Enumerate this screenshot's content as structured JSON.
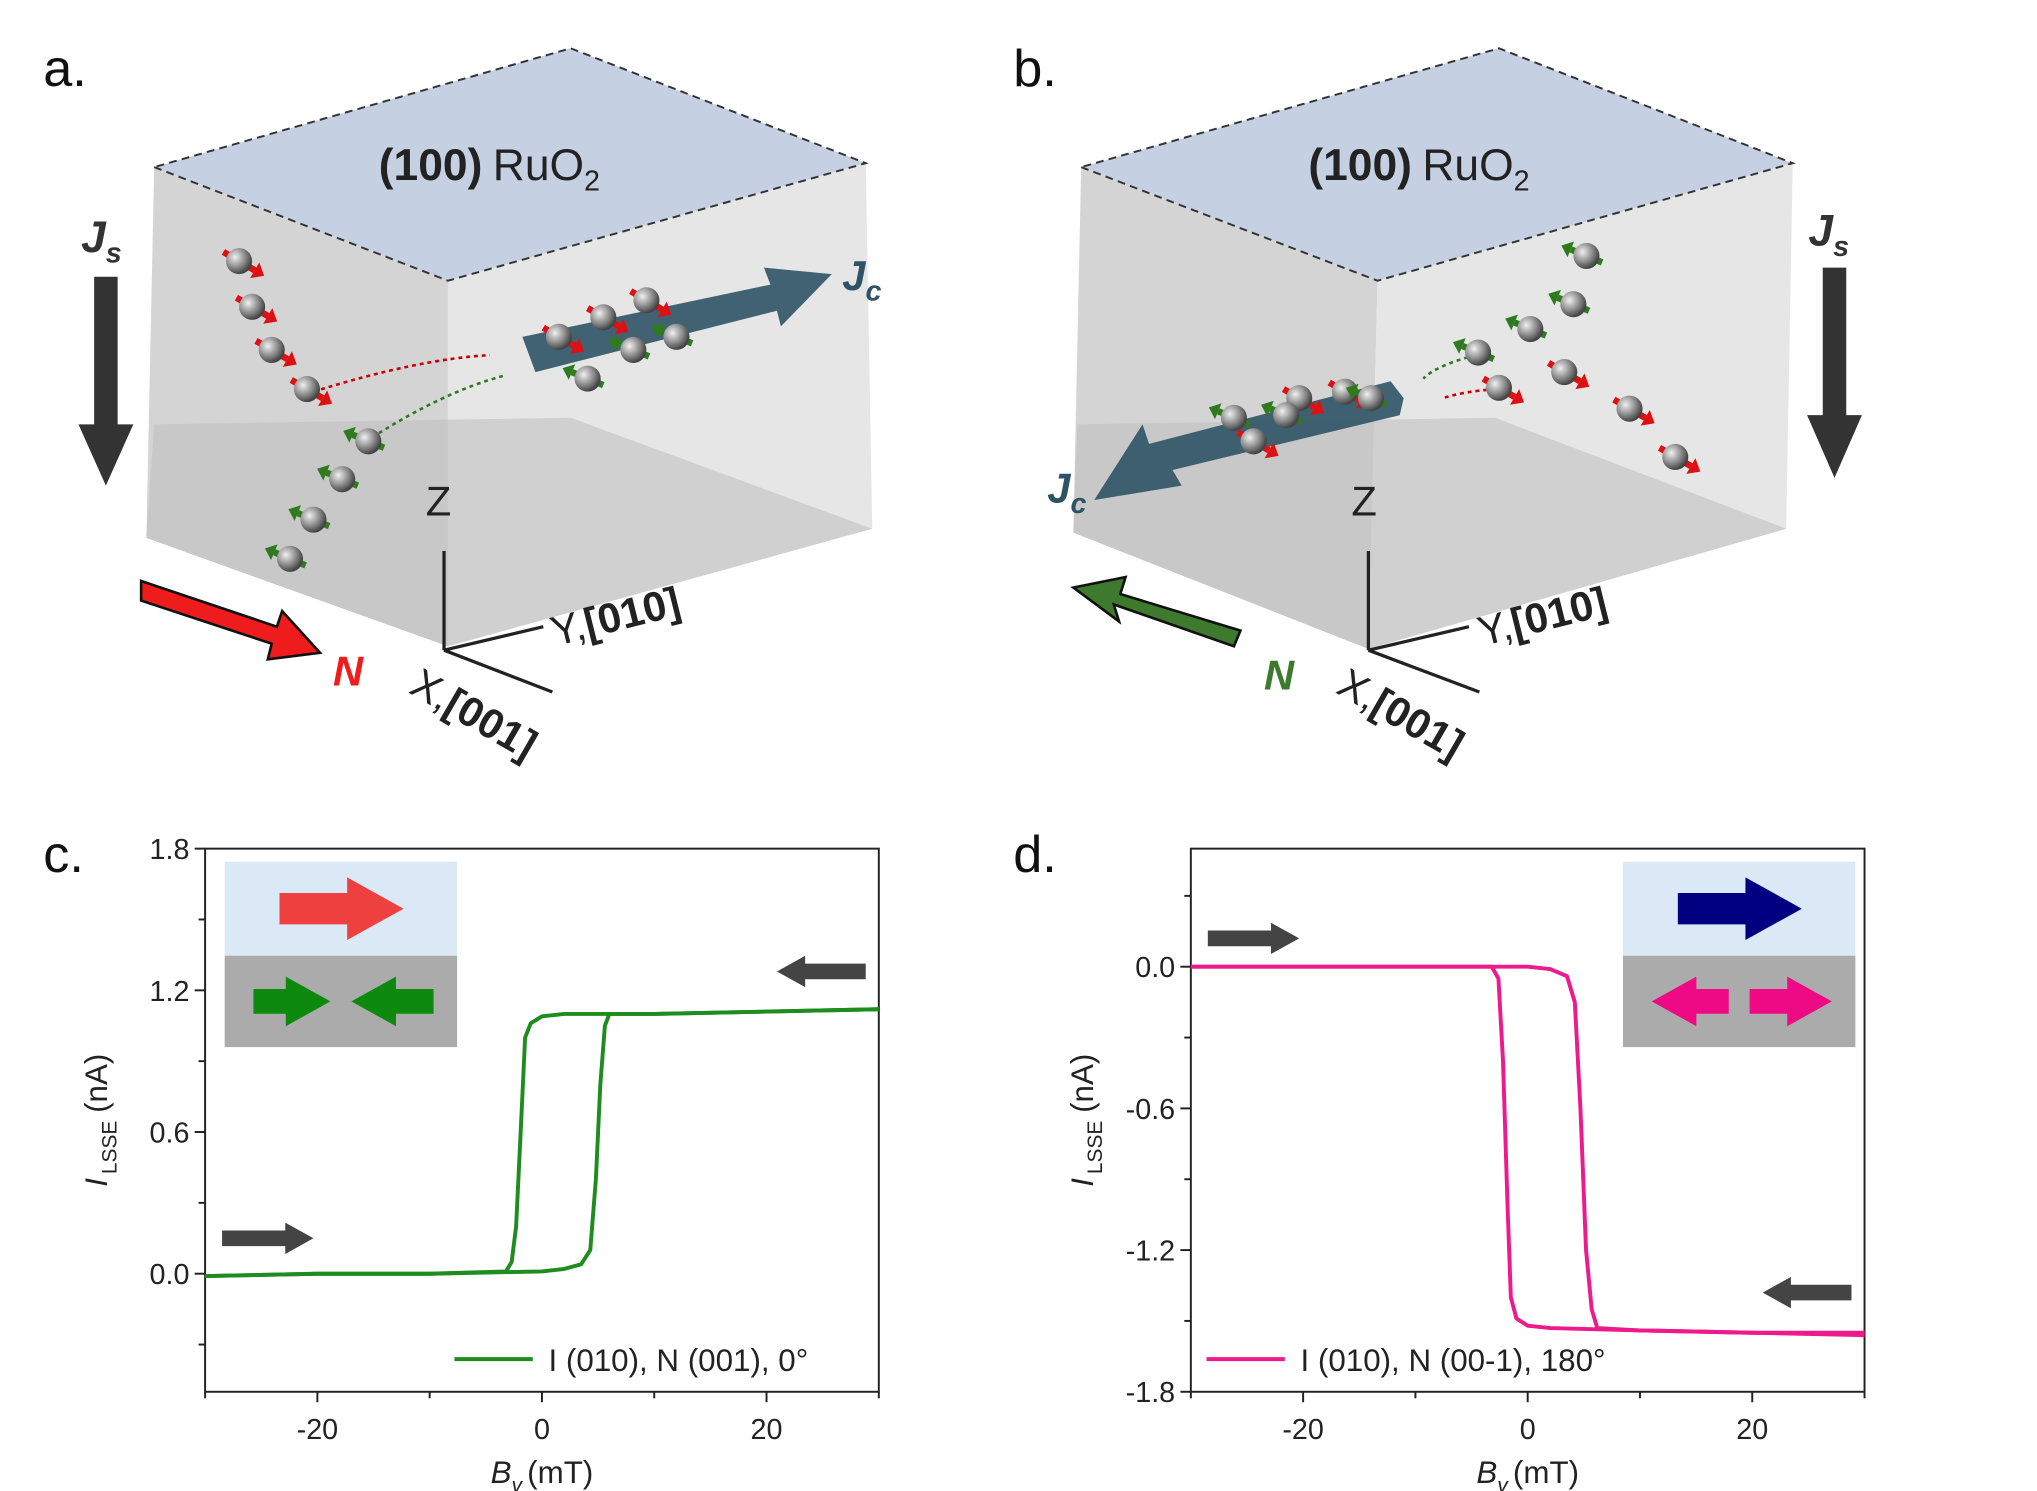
{
  "panels": {
    "a": {
      "label": "a.",
      "surface_prefix": "(100)",
      "surface_material": "RuO",
      "surface_subscript": "2",
      "js": "J",
      "js_sub": "s",
      "jc": "J",
      "jc_sub": "c",
      "n_label": "N",
      "axis_z": "Z",
      "axis_y": "Y,",
      "axis_y_dir": "[010]",
      "axis_x": "X,",
      "axis_x_dir": "[001]",
      "n_color": "#ee1c1c"
    },
    "b": {
      "label": "b.",
      "surface_prefix": "(100)",
      "surface_material": "RuO",
      "surface_subscript": "2",
      "js": "J",
      "js_sub": "s",
      "jc": "J",
      "jc_sub": "c",
      "n_label": "N",
      "axis_z": "Z",
      "axis_y": "Y,",
      "axis_y_dir": "[010]",
      "axis_x": "X,",
      "axis_x_dir": "[001]",
      "n_color": "#3e7a2e"
    },
    "c": {
      "label": "c."
    },
    "d": {
      "label": "d."
    }
  },
  "colors": {
    "top_face": "#c5d0e2",
    "jc_arrow": "#2f5366",
    "spin_red": "#dd1111",
    "spin_green": "#2f7a1f",
    "ball": "#8a8a8a"
  },
  "chart_data": [
    {
      "type": "line",
      "panel": "c",
      "xlabel": {
        "symbol": "B",
        "subscript": "y",
        "unit": "(mT)"
      },
      "ylabel": {
        "symbol": "I",
        "subscript": "LSSE",
        "unit": "(nA)"
      },
      "xlim": [
        -30,
        30
      ],
      "ylim": [
        -0.5,
        1.8
      ],
      "xticks": [
        -20,
        0,
        20
      ],
      "xtick_labels": [
        "-20",
        "0",
        "20"
      ],
      "yticks": [
        0.0,
        0.6,
        1.2,
        1.8
      ],
      "ytick_labels": [
        "0.0",
        "0.6",
        "1.2",
        "1.8"
      ],
      "grid": false,
      "color": "#1e8c1e",
      "legend": {
        "text": "I (010), N (001), 0°",
        "placement": "bottom-right"
      },
      "series": [
        {
          "sweep": "up",
          "x": [
            -30,
            -20,
            -10,
            0,
            2,
            3.5,
            4.3,
            4.8,
            5.2,
            5.6,
            6,
            10,
            20,
            30
          ],
          "y": [
            -0.01,
            0.0,
            0.0,
            0.01,
            0.02,
            0.04,
            0.1,
            0.4,
            0.8,
            1.05,
            1.1,
            1.1,
            1.11,
            1.12
          ]
        },
        {
          "sweep": "down",
          "x": [
            30,
            20,
            10,
            2,
            0,
            -1,
            -1.5,
            -1.9,
            -2.3,
            -2.7,
            -3.2,
            -10,
            -20,
            -30
          ],
          "y": [
            1.12,
            1.11,
            1.1,
            1.1,
            1.09,
            1.06,
            1.0,
            0.6,
            0.2,
            0.05,
            0.01,
            0.0,
            0.0,
            -0.01
          ]
        }
      ],
      "inset": {
        "top_arrow": "right",
        "top_color": "#ef4040",
        "bottom_arrows": [
          "right",
          "left"
        ],
        "bottom_color": "#0d8a0d"
      },
      "sweep_arrows": [
        {
          "direction": "right",
          "at_y": 0.15,
          "side": "left"
        },
        {
          "direction": "left",
          "at_y": 1.28,
          "side": "right"
        }
      ]
    },
    {
      "type": "line",
      "panel": "d",
      "xlabel": {
        "symbol": "B",
        "subscript": "y",
        "unit": "(mT)"
      },
      "ylabel": {
        "symbol": "I",
        "subscript": "LSSE",
        "unit": "(nA)"
      },
      "xlim": [
        -30,
        30
      ],
      "ylim": [
        -1.8,
        0.5
      ],
      "xticks": [
        -20,
        0,
        20
      ],
      "xtick_labels": [
        "-20",
        "0",
        "20"
      ],
      "yticks": [
        -1.8,
        -1.2,
        -0.6,
        0.0
      ],
      "ytick_labels": [
        "-1.8",
        "-1.2",
        "-0.6",
        "0.0"
      ],
      "grid": false,
      "color": "#ee1a8c",
      "legend": {
        "text": "I (010), N (00-1), 180°",
        "placement": "bottom-left"
      },
      "series": [
        {
          "sweep": "up",
          "x": [
            -30,
            -20,
            -10,
            0,
            2,
            3.5,
            4.2,
            4.7,
            5.2,
            5.7,
            6.2,
            10,
            20,
            30
          ],
          "y": [
            0.0,
            0.0,
            0.0,
            0.0,
            -0.01,
            -0.04,
            -0.15,
            -0.6,
            -1.2,
            -1.45,
            -1.53,
            -1.54,
            -1.55,
            -1.56
          ]
        },
        {
          "sweep": "down",
          "x": [
            30,
            20,
            10,
            2,
            0,
            -1,
            -1.5,
            -1.8,
            -2.2,
            -2.6,
            -3.2,
            -10,
            -20,
            -30
          ],
          "y": [
            -1.55,
            -1.55,
            -1.54,
            -1.53,
            -1.52,
            -1.49,
            -1.4,
            -1.0,
            -0.4,
            -0.05,
            0.0,
            0.0,
            0.0,
            0.0
          ]
        }
      ],
      "inset": {
        "top_arrow": "right",
        "top_color": "#000080",
        "bottom_arrows": [
          "left",
          "right"
        ],
        "bottom_color": "#ee0a84"
      },
      "sweep_arrows": [
        {
          "direction": "right",
          "at_y": 0.12,
          "side": "left"
        },
        {
          "direction": "left",
          "at_y": -1.38,
          "side": "right"
        }
      ]
    }
  ]
}
